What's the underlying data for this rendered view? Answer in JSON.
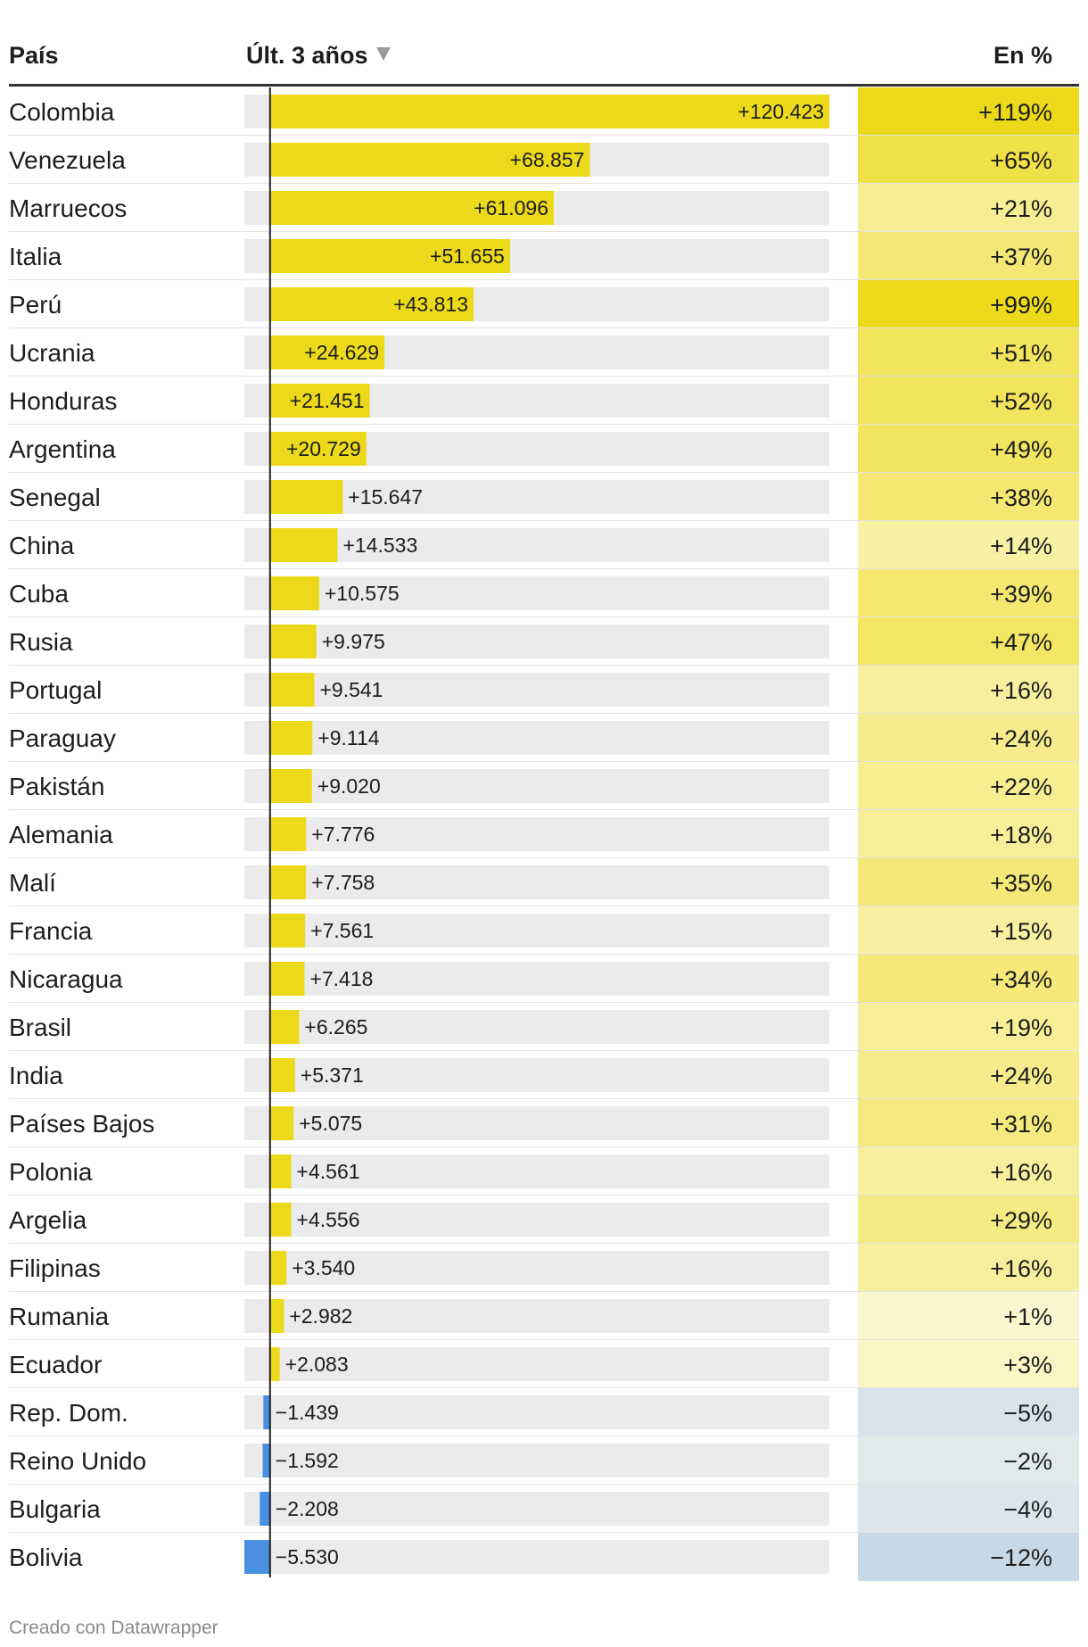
{
  "header": {
    "country_label": "País",
    "bar_label": "Últ. 3 años",
    "pct_label": "En %"
  },
  "footer": "Creado con Datawrapper",
  "colors": {
    "positive_bar": "#ecda1a",
    "negative_bar": "#4a90e2",
    "track": "#ebebeb",
    "row_divider": "#e2e2e2",
    "header_rule": "#333333"
  },
  "chart_data": {
    "type": "table",
    "columns": [
      "País",
      "Últ. 3 años",
      "En %"
    ],
    "sort": "Últ. 3 años, descending",
    "bar_range": [
      -5530,
      120423
    ],
    "rows": [
      {
        "country": "Colombia",
        "value": 120423,
        "value_label": "+120.423",
        "pct": 119,
        "pct_label": "+119%"
      },
      {
        "country": "Venezuela",
        "value": 68857,
        "value_label": "+68.857",
        "pct": 65,
        "pct_label": "+65%"
      },
      {
        "country": "Marruecos",
        "value": 61096,
        "value_label": "+61.096",
        "pct": 21,
        "pct_label": "+21%"
      },
      {
        "country": "Italia",
        "value": 51655,
        "value_label": "+51.655",
        "pct": 37,
        "pct_label": "+37%"
      },
      {
        "country": "Perú",
        "value": 43813,
        "value_label": "+43.813",
        "pct": 99,
        "pct_label": "+99%"
      },
      {
        "country": "Ucrania",
        "value": 24629,
        "value_label": "+24.629",
        "pct": 51,
        "pct_label": "+51%"
      },
      {
        "country": "Honduras",
        "value": 21451,
        "value_label": "+21.451",
        "pct": 52,
        "pct_label": "+52%"
      },
      {
        "country": "Argentina",
        "value": 20729,
        "value_label": "+20.729",
        "pct": 49,
        "pct_label": "+49%"
      },
      {
        "country": "Senegal",
        "value": 15647,
        "value_label": "+15.647",
        "pct": 38,
        "pct_label": "+38%"
      },
      {
        "country": "China",
        "value": 14533,
        "value_label": "+14.533",
        "pct": 14,
        "pct_label": "+14%"
      },
      {
        "country": "Cuba",
        "value": 10575,
        "value_label": "+10.575",
        "pct": 39,
        "pct_label": "+39%"
      },
      {
        "country": "Rusia",
        "value": 9975,
        "value_label": "+9.975",
        "pct": 47,
        "pct_label": "+47%"
      },
      {
        "country": "Portugal",
        "value": 9541,
        "value_label": "+9.541",
        "pct": 16,
        "pct_label": "+16%"
      },
      {
        "country": "Paraguay",
        "value": 9114,
        "value_label": "+9.114",
        "pct": 24,
        "pct_label": "+24%"
      },
      {
        "country": "Pakistán",
        "value": 9020,
        "value_label": "+9.020",
        "pct": 22,
        "pct_label": "+22%"
      },
      {
        "country": "Alemania",
        "value": 7776,
        "value_label": "+7.776",
        "pct": 18,
        "pct_label": "+18%"
      },
      {
        "country": "Malí",
        "value": 7758,
        "value_label": "+7.758",
        "pct": 35,
        "pct_label": "+35%"
      },
      {
        "country": "Francia",
        "value": 7561,
        "value_label": "+7.561",
        "pct": 15,
        "pct_label": "+15%"
      },
      {
        "country": "Nicaragua",
        "value": 7418,
        "value_label": "+7.418",
        "pct": 34,
        "pct_label": "+34%"
      },
      {
        "country": "Brasil",
        "value": 6265,
        "value_label": "+6.265",
        "pct": 19,
        "pct_label": "+19%"
      },
      {
        "country": "India",
        "value": 5371,
        "value_label": "+5.371",
        "pct": 24,
        "pct_label": "+24%"
      },
      {
        "country": "Países Bajos",
        "value": 5075,
        "value_label": "+5.075",
        "pct": 31,
        "pct_label": "+31%"
      },
      {
        "country": "Polonia",
        "value": 4561,
        "value_label": "+4.561",
        "pct": 16,
        "pct_label": "+16%"
      },
      {
        "country": "Argelia",
        "value": 4556,
        "value_label": "+4.556",
        "pct": 29,
        "pct_label": "+29%"
      },
      {
        "country": "Filipinas",
        "value": 3540,
        "value_label": "+3.540",
        "pct": 16,
        "pct_label": "+16%"
      },
      {
        "country": "Rumania",
        "value": 2982,
        "value_label": "+2.982",
        "pct": 1,
        "pct_label": "+1%"
      },
      {
        "country": "Ecuador",
        "value": 2083,
        "value_label": "+2.083",
        "pct": 3,
        "pct_label": "+3%"
      },
      {
        "country": "Rep. Dom.",
        "value": -1439,
        "value_label": "−1.439",
        "pct": -5,
        "pct_label": "−5%"
      },
      {
        "country": "Reino Unido",
        "value": -1592,
        "value_label": "−1.592",
        "pct": -2,
        "pct_label": "−2%"
      },
      {
        "country": "Bulgaria",
        "value": -2208,
        "value_label": "−2.208",
        "pct": -4,
        "pct_label": "−4%"
      },
      {
        "country": "Bolivia",
        "value": -5530,
        "value_label": "−5.530",
        "pct": -12,
        "pct_label": "−12%"
      }
    ]
  }
}
